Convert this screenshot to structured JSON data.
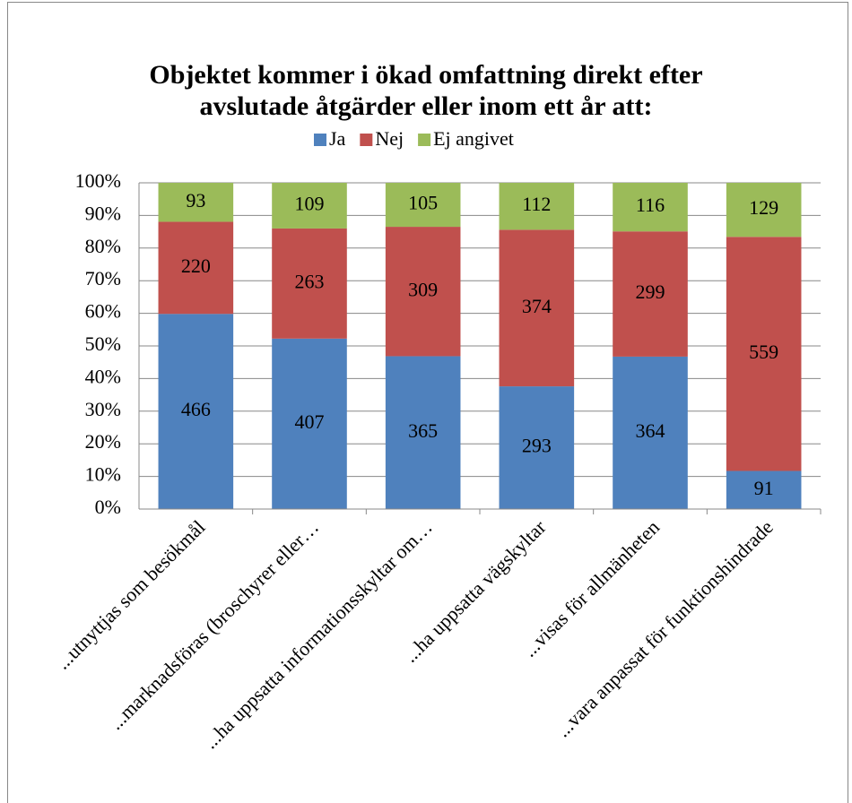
{
  "chart_data": {
    "type": "bar",
    "stacking": "percent",
    "title": [
      "Objektet kommer i ökad omfattning direkt efter",
      "avslutade åtgärder eller inom ett år att:"
    ],
    "categories": [
      "...utnyttjas som besökmål",
      "...marknadsföras (broschyrer eller…",
      "...ha uppsatta informationsskyltar om…",
      "...ha uppsatta vägskyltar",
      "...visas för allmänheten",
      "...vara anpassat för funktionshindrade"
    ],
    "series": [
      {
        "name": "Ja",
        "color": "#4f81bd",
        "values": [
          466,
          407,
          365,
          293,
          364,
          91
        ]
      },
      {
        "name": "Nej",
        "color": "#c0504d",
        "values": [
          220,
          263,
          309,
          374,
          299,
          559
        ]
      },
      {
        "name": "Ej angivet",
        "color": "#9bbb59",
        "values": [
          93,
          109,
          105,
          112,
          116,
          129
        ]
      }
    ],
    "ylim": [
      0,
      100
    ],
    "yticks": [
      {
        "value": 0,
        "label": "0%"
      },
      {
        "value": 10,
        "label": "10%"
      },
      {
        "value": 20,
        "label": "20%"
      },
      {
        "value": 30,
        "label": "30%"
      },
      {
        "value": 40,
        "label": "40%"
      },
      {
        "value": 50,
        "label": "50%"
      },
      {
        "value": 60,
        "label": "60%"
      },
      {
        "value": 70,
        "label": "70%"
      },
      {
        "value": 80,
        "label": "80%"
      },
      {
        "value": 90,
        "label": "90%"
      },
      {
        "value": 100,
        "label": "100%"
      }
    ],
    "grid": true,
    "legend": "top"
  }
}
